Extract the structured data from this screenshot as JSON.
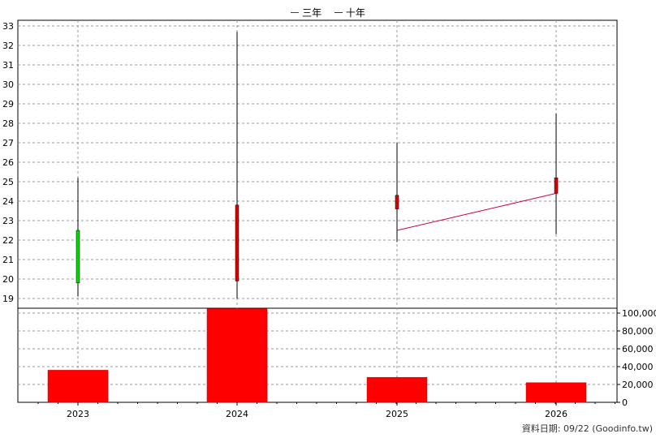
{
  "chart_data": [
    {
      "type": "candlestick",
      "title": "",
      "categories": [
        "2023",
        "2024",
        "2025",
        "2026"
      ],
      "ylim": [
        18.5,
        33.3
      ],
      "yticks": [
        19,
        20,
        21,
        22,
        23,
        24,
        25,
        26,
        27,
        28,
        29,
        30,
        31,
        32,
        33
      ],
      "candles": [
        {
          "x": "2023",
          "open": 19.8,
          "high": 25.2,
          "low": 19.1,
          "close": 22.5,
          "color": "#00dd00"
        },
        {
          "x": "2024",
          "open": 19.9,
          "high": 32.7,
          "low": 19.0,
          "close": 23.8,
          "color": "#dd0000"
        },
        {
          "x": "2025",
          "open": 23.6,
          "high": 27.0,
          "low": 21.9,
          "close": 24.3,
          "color": "#dd0000"
        },
        {
          "x": "2026",
          "open": 24.4,
          "high": 28.5,
          "low": 22.3,
          "close": 25.2,
          "color": "#dd0000"
        }
      ],
      "series": [
        {
          "name": "三年",
          "color": "#cc0044",
          "points": [
            {
              "x": "2025",
              "y": 22.5
            },
            {
              "x": "2026",
              "y": 24.4
            }
          ]
        },
        {
          "name": "十年",
          "color": "#6600cc",
          "points": []
        }
      ],
      "grid": true,
      "legend_position": "top-center"
    },
    {
      "type": "bar",
      "categories": [
        "2023",
        "2024",
        "2025",
        "2026"
      ],
      "values": [
        36000,
        105000,
        28000,
        22000
      ],
      "color": "#ff0000",
      "ylim": [
        0,
        110000
      ],
      "yticks": [
        "0",
        "20,000",
        "40,000",
        "60,000",
        "80,000",
        "100,000"
      ],
      "ytick_values": [
        0,
        20000,
        40000,
        60000,
        80000,
        100000
      ],
      "grid": true
    }
  ],
  "credit": "資料日期: 09/22  (Goodinfo.tw)"
}
